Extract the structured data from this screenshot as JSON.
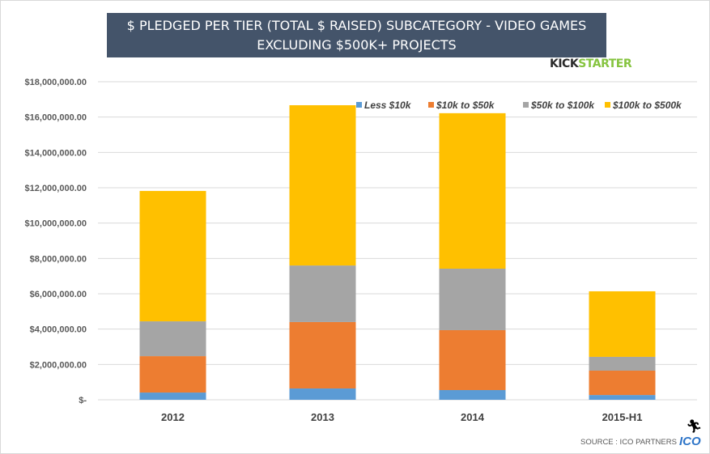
{
  "chart_data": {
    "type": "bar",
    "stacked": true,
    "title": "$ PLEDGED PER TIER (TOTAL $ RAISED) SUBCATEGORY - VIDEO GAMES EXCLUDING $500K+ PROJECTS",
    "title_lines": [
      "$ PLEDGED PER TIER (TOTAL $ RAISED) SUBCATEGORY - VIDEO GAMES",
      "EXCLUDING $500K+ PROJECTS"
    ],
    "categories": [
      "2012",
      "2013",
      "2014",
      "2015-H1"
    ],
    "series": [
      {
        "name": "Less $10k",
        "color": "#5b9bd5",
        "values": [
          410000,
          640000,
          550000,
          270000
        ]
      },
      {
        "name": "$10k to $50k",
        "color": "#ed7d31",
        "values": [
          2060000,
          3760000,
          3390000,
          1380000
        ]
      },
      {
        "name": "$50k to $100k",
        "color": "#a5a5a5",
        "values": [
          1970000,
          3200000,
          3480000,
          780000
        ]
      },
      {
        "name": "$100k to $500k",
        "color": "#ffc000",
        "values": [
          7380000,
          9070000,
          8800000,
          3710000
        ]
      }
    ],
    "ylim": [
      0,
      18000000
    ],
    "yticks": [
      0,
      2000000,
      4000000,
      6000000,
      8000000,
      10000000,
      12000000,
      14000000,
      16000000,
      18000000
    ],
    "ytick_labels": [
      "$-",
      "$2,000,000.00",
      "$4,000,000.00",
      "$6,000,000.00",
      "$8,000,000.00",
      "$10,000,000.00",
      "$12,000,000.00",
      "$14,000,000.00",
      "$16,000,000.00",
      "$18,000,000.00"
    ],
    "grid": true,
    "legend_position": "top-right",
    "xlabel": "",
    "ylabel": ""
  },
  "branding": {
    "kickstarter_a": "KICK",
    "kickstarter_b": "STARTER",
    "source": "SOURCE : ICO PARTNERS",
    "ico": "ICO",
    "runner_icon": "running-man-icon"
  },
  "colors": {
    "title_bg": "#44546a",
    "kickstarter_green": "#86c440",
    "ico_blue": "#2e75c8"
  }
}
